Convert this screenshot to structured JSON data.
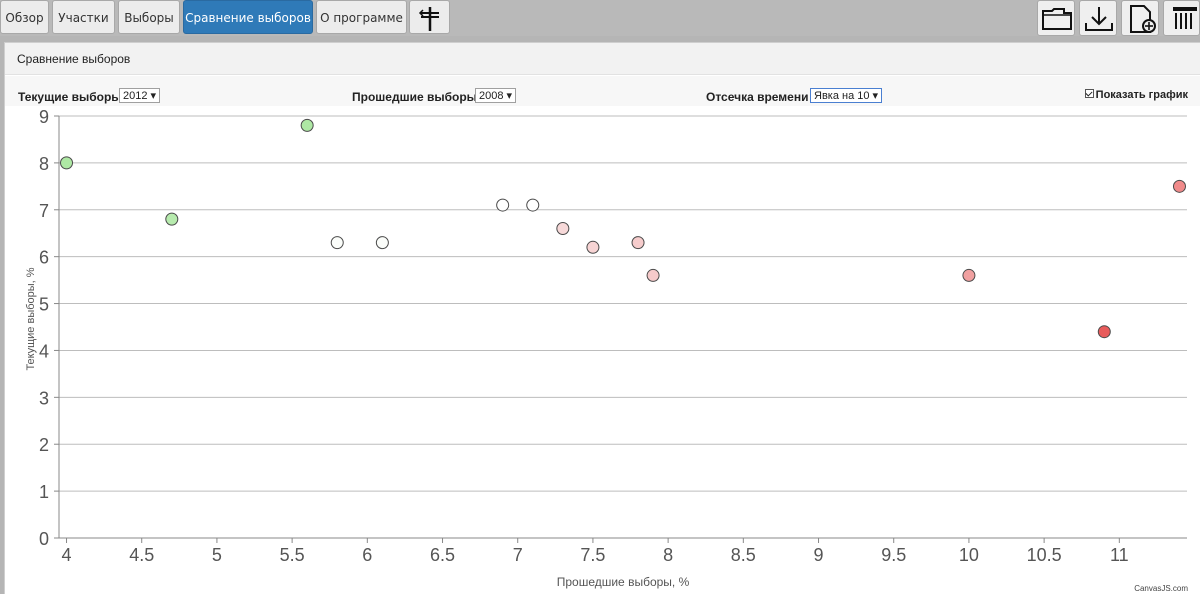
{
  "tabs": [
    {
      "label": "Обзор"
    },
    {
      "label": "Участки"
    },
    {
      "label": "Выборы"
    },
    {
      "label": "Сравнение выборов"
    },
    {
      "label": "О программе"
    }
  ],
  "toolbar_icons": [
    "signpost-icon",
    "folder-icon",
    "download-icon",
    "new-document-icon",
    "columns-icon"
  ],
  "panel": {
    "title": "Сравнение выборов"
  },
  "controls": {
    "current_label": "Текущие выборы",
    "current_value": "2012",
    "past_label": "Прошедшие выборы",
    "past_value": "2008",
    "time_label": "Отсечка времени",
    "time_value": "Явка на 10",
    "show_chart_label": "Показать график"
  },
  "colors": {
    "active_tab": "#2f7ab8",
    "grid": "#bdbdbd"
  },
  "chart_data": {
    "type": "scatter",
    "title": "",
    "xlabel": "Прошедшие выборы, %",
    "ylabel": "Текущие выборы, %",
    "xlim": [
      3.95,
      11.45
    ],
    "ylim": [
      0,
      9
    ],
    "x_ticks": [
      4,
      4.5,
      5,
      5.5,
      6,
      6.5,
      7,
      7.5,
      8,
      8.5,
      9,
      9.5,
      10,
      10.5,
      11
    ],
    "y_ticks": [
      0,
      1,
      2,
      3,
      4,
      5,
      6,
      7,
      8,
      9
    ],
    "grid": "horizontal",
    "points": [
      {
        "x": 4.0,
        "y": 8.0,
        "color": "#aee8a4"
      },
      {
        "x": 4.7,
        "y": 6.8,
        "color": "#b7ebae"
      },
      {
        "x": 5.6,
        "y": 8.8,
        "color": "#aee8a4"
      },
      {
        "x": 5.8,
        "y": 6.3,
        "color": "#fbfdfa"
      },
      {
        "x": 6.1,
        "y": 6.3,
        "color": "#fbfdfa"
      },
      {
        "x": 6.9,
        "y": 7.1,
        "color": "#ffffff"
      },
      {
        "x": 7.1,
        "y": 7.1,
        "color": "#ffffff"
      },
      {
        "x": 7.3,
        "y": 6.6,
        "color": "#f7d9d9"
      },
      {
        "x": 7.5,
        "y": 6.2,
        "color": "#f7d4d4"
      },
      {
        "x": 7.8,
        "y": 6.3,
        "color": "#f6cccc"
      },
      {
        "x": 7.9,
        "y": 5.6,
        "color": "#f6caca"
      },
      {
        "x": 10.0,
        "y": 5.6,
        "color": "#f0a0a0"
      },
      {
        "x": 10.9,
        "y": 4.4,
        "color": "#e85b5b"
      },
      {
        "x": 11.4,
        "y": 7.5,
        "color": "#f08a8a"
      }
    ]
  },
  "credit": "CanvasJS.com"
}
